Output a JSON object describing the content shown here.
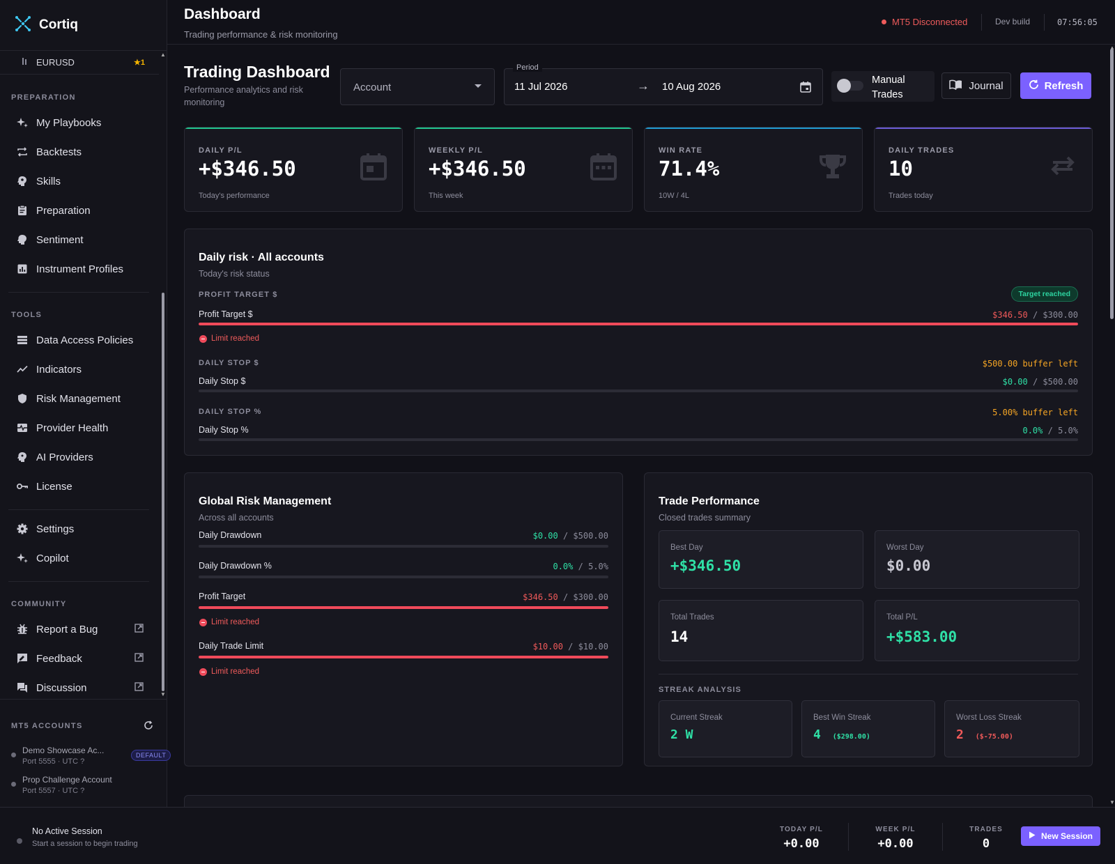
{
  "app": {
    "name": "Cortiq"
  },
  "sidebar": {
    "pinned": {
      "symbol": "EURUSD",
      "badge": "★1"
    },
    "sections": {
      "preparation": "PREPARATION",
      "tools": "TOOLS",
      "community": "COMMUNITY"
    },
    "preparation": [
      "My Playbooks",
      "Backtests",
      "Skills",
      "Preparation",
      "Sentiment",
      "Instrument Profiles"
    ],
    "tools": [
      "Data Access Policies",
      "Indicators",
      "Risk Management",
      "Provider Health",
      "AI Providers",
      "License"
    ],
    "misc": [
      "Settings",
      "Copilot"
    ],
    "community": [
      "Report a Bug",
      "Feedback",
      "Discussion"
    ],
    "mt5": {
      "title": "MT5 ACCOUNTS",
      "accounts": [
        {
          "name": "Demo Showcase Ac...",
          "port": "Port 5555 · UTC ?",
          "badge": "DEFAULT"
        },
        {
          "name": "Prop Challenge Account",
          "port": "Port 5557 · UTC ?"
        }
      ]
    }
  },
  "header": {
    "title": "Dashboard",
    "subtitle": "Trading performance & risk monitoring",
    "status": "MT5 Disconnected",
    "build": "Dev build",
    "clock": "07:56:05"
  },
  "dashboard": {
    "title": "Trading Dashboard",
    "subtitle": "Performance analytics and risk monitoring",
    "account_placeholder": "Account",
    "period": {
      "label": "Period",
      "start": "11 Jul 2026",
      "arrow": "→",
      "end": "10 Aug 2026"
    },
    "manual_trades": "Manual Trades",
    "journal": "Journal",
    "refresh": "Refresh"
  },
  "stats": [
    {
      "label": "DAILY P/L",
      "value": "+$346.50",
      "sub": "Today's performance",
      "accent": "#21c58e"
    },
    {
      "label": "WEEKLY P/L",
      "value": "+$346.50",
      "sub": "This week",
      "accent": "#21c58e"
    },
    {
      "label": "WIN RATE",
      "value": "71.4%",
      "sub": "10W / 4L",
      "accent": "#1f9bd1"
    },
    {
      "label": "DAILY TRADES",
      "value": "10",
      "sub": "Trades today",
      "accent": "#6b5bd6"
    }
  ],
  "daily_risk": {
    "title": "Daily risk · All accounts",
    "subtitle": "Today's risk status",
    "rows": [
      {
        "caption": "PROFIT TARGET $",
        "status": "Target reached",
        "name": "Profit Target $",
        "current": "$346.50",
        "sep": "/",
        "limit": "$300.00",
        "progress": 1.0,
        "limit_text": "Limit reached"
      },
      {
        "caption": "DAILY STOP $",
        "status": "$500.00 buffer left",
        "name": "Daily Stop $",
        "current": "$0.00",
        "sep": "/",
        "limit": "$500.00",
        "progress": 0.0
      },
      {
        "caption": "DAILY STOP %",
        "status": "5.00% buffer left",
        "name": "Daily Stop %",
        "current": "0.0%",
        "sep": "/",
        "limit": "5.0%",
        "progress": 0.0
      }
    ]
  },
  "global_risk": {
    "title": "Global Risk Management",
    "subtitle": "Across all accounts",
    "rows": [
      {
        "name": "Daily Drawdown",
        "current": "$0.00",
        "sep": "/",
        "limit": "$500.00",
        "progress": 0.0
      },
      {
        "name": "Daily Drawdown %",
        "current": "0.0%",
        "sep": "/",
        "limit": "5.0%",
        "progress": 0.0
      },
      {
        "name": "Profit Target",
        "current": "$346.50",
        "sep": "/",
        "limit": "$300.00",
        "progress": 1.0,
        "limit_text": "Limit reached"
      },
      {
        "name": "Daily Trade Limit",
        "current": "$10.00",
        "sep": "/",
        "limit": "$10.00",
        "progress": 1.0,
        "limit_text": "Limit reached"
      }
    ]
  },
  "trade_performance": {
    "title": "Trade Performance",
    "subtitle": "Closed trades summary",
    "best_day": {
      "label": "Best Day",
      "value": "+$346.50"
    },
    "worst_day": {
      "label": "Worst Day",
      "value": "$0.00"
    },
    "total_trades": {
      "label": "Total Trades",
      "value": "14"
    },
    "total_pl": {
      "label": "Total P/L",
      "value": "+$583.00"
    },
    "streak_title": "STREAK ANALYSIS",
    "current_streak": {
      "label": "Current Streak",
      "value": "2 W"
    },
    "best_win": {
      "label": "Best Win Streak",
      "value": "4",
      "extra": "($298.00)"
    },
    "worst_loss": {
      "label": "Worst Loss Streak",
      "value": "2",
      "extra": "($-75.00)"
    }
  },
  "session": {
    "title": "No Active Session",
    "subtitle": "Start a session to begin trading",
    "today_label": "TODAY P/L",
    "today_value": "+0.00",
    "week_label": "WEEK P/L",
    "week_value": "+0.00",
    "trades_label": "TRADES",
    "trades_value": "0",
    "new_session": "New Session"
  },
  "colors": {
    "accent": "#7b61ff",
    "green": "#2fe0a6",
    "red": "#f05a5a",
    "orange": "#f5a524"
  }
}
